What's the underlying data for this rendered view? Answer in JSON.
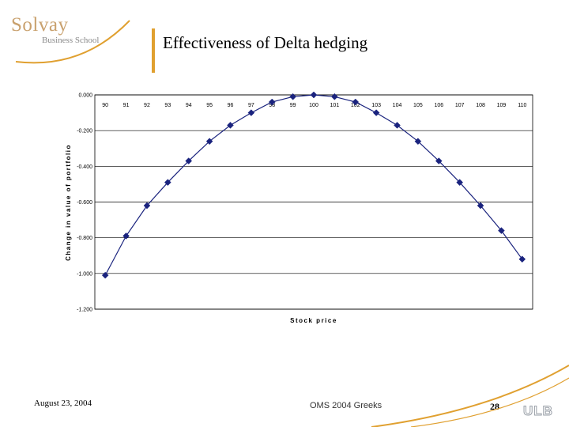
{
  "logo": {
    "word": "Solvay",
    "sub": "Business School"
  },
  "slide": {
    "title": "Effectiveness of Delta hedging"
  },
  "footer": {
    "date": "August 23, 2004",
    "course": "OMS 2004 Greeks",
    "page": "28",
    "brand": "ULB"
  },
  "colors": {
    "series": "#1a237e",
    "accent": "#e0a030"
  },
  "chart_data": {
    "type": "line",
    "title": "",
    "xlabel": "Stock price",
    "ylabel": "Change in value of portfolio",
    "x": [
      90,
      91,
      92,
      93,
      94,
      95,
      96,
      97,
      98,
      99,
      100,
      101,
      102,
      103,
      104,
      105,
      106,
      107,
      108,
      109,
      110
    ],
    "x_tick_labels": [
      "90",
      "91",
      "92",
      "93",
      "94",
      "95",
      "96",
      "97",
      "98",
      "99",
      "100",
      "101",
      "102",
      "103",
      "104",
      "105",
      "106",
      "107",
      "108",
      "109",
      "110"
    ],
    "y_tick_labels": [
      "0.000",
      "-0.200",
      "-0.400",
      "-0.600",
      "-0.800",
      "-1.000",
      "-1.200"
    ],
    "ylim": [
      -1.2,
      0
    ],
    "grid": "horizontal",
    "marker": "diamond",
    "series": [
      {
        "values": [
          -1.01,
          -0.79,
          -0.62,
          -0.49,
          -0.37,
          -0.26,
          -0.17,
          -0.1,
          -0.04,
          -0.01,
          0.0,
          -0.01,
          -0.04,
          -0.1,
          -0.17,
          -0.26,
          -0.37,
          -0.49,
          -0.62,
          -0.76,
          -0.92
        ]
      }
    ]
  }
}
